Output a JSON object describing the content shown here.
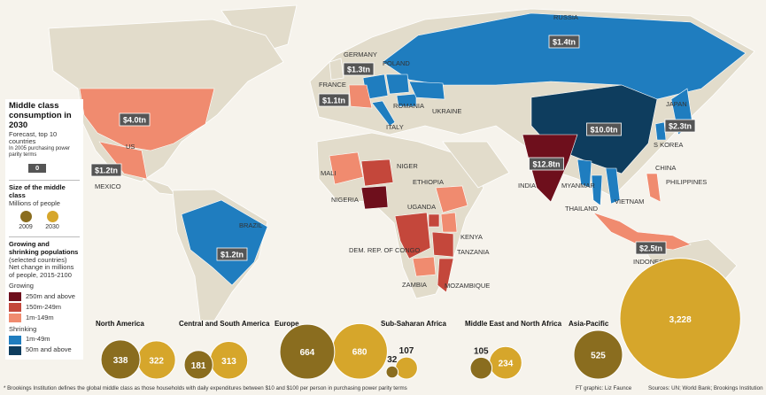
{
  "sidebar": {
    "title": "Middle class consumption in 2030",
    "subtitle": "Forecast, top 10 countries",
    "note": "In 2005 purchasing power parity terms",
    "key_sample": "0",
    "size_title": "Size of the middle class",
    "size_unit": "Millions of people",
    "size_years": [
      "2009",
      "2030"
    ],
    "pop_title": "Growing and shrinking populations",
    "pop_subtitle": "(selected countries)",
    "pop_unit": "Net change in millions of people, 2015-2100",
    "growing": {
      "label": "Growing",
      "items": [
        "250m and above",
        "150m-249m",
        "1m-149m"
      ]
    },
    "shrinking": {
      "label": "Shrinking",
      "items": [
        "1m-49m",
        "50m and above"
      ]
    }
  },
  "country_labels": [
    "RUSSIA",
    "GERMANY",
    "POLAND",
    "FRANCE",
    "ROMANIA",
    "UKRAINE",
    "ITALY",
    "JAPAN",
    "S KOREA",
    "CHINA",
    "PHILIPPINES",
    "INDIA",
    "MYANMAR",
    "THAILAND",
    "VIETNAM",
    "INDONESIA",
    "US",
    "MEXICO",
    "BRAZIL",
    "MALI",
    "NIGER",
    "NIGERIA",
    "ETHIOPIA",
    "UGANDA",
    "KENYA",
    "DEM. REP. OF CONGO",
    "TANZANIA",
    "ZAMBIA",
    "MOZAMBIQUE"
  ],
  "consumption_labels": [
    "$1.4tn",
    "$1.3tn",
    "$1.1tn",
    "$4.0tn",
    "$1.2tn",
    "$1.2tn",
    "$10.0tn",
    "$12.8tn",
    "$2.3tn",
    "$2.5tn"
  ],
  "regions": [
    {
      "name": "North America",
      "values": [
        338,
        322
      ]
    },
    {
      "name": "Central and South America",
      "values": [
        181,
        313
      ]
    },
    {
      "name": "Europe",
      "values": [
        664,
        680
      ]
    },
    {
      "name": "Sub-Saharan Africa",
      "values": [
        32,
        107
      ]
    },
    {
      "name": "Middle East and North Africa",
      "values": [
        105,
        234
      ]
    },
    {
      "name": "Asia-Pacific",
      "values": [
        525,
        3228
      ],
      "value_labels": [
        "525",
        "3,228"
      ]
    }
  ],
  "footer": {
    "note": "* Brookings Institution defines the global middle class as those households with daily expenditures between $10 and $100 per person in purchasing power parity terms",
    "credit": "FT graphic: Liz Faunce",
    "sources": "Sources: UN; World Bank; Brookings Institution"
  }
}
